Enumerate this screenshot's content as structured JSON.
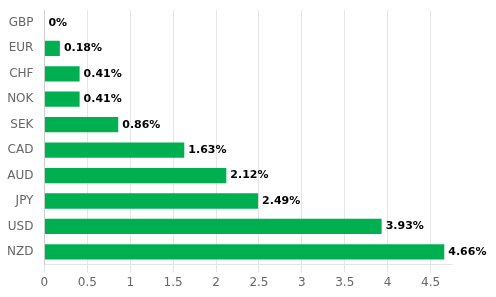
{
  "chart_data": {
    "type": "bar",
    "orientation": "horizontal",
    "categories": [
      "GBP",
      "EUR",
      "CHF",
      "NOK",
      "SEK",
      "CAD",
      "AUD",
      "JPY",
      "USD",
      "NZD"
    ],
    "values": [
      0.0,
      0.18,
      0.41,
      0.41,
      0.86,
      1.63,
      2.12,
      2.49,
      3.93,
      4.66
    ],
    "value_labels": [
      "0%",
      "0.18%",
      "0.41%",
      "0.41%",
      "0.86%",
      "1.63%",
      "2.12%",
      "2.49%",
      "3.93%",
      "4.66%"
    ],
    "data_labels": true,
    "color": "#00b050",
    "xlim": [
      0,
      4.75
    ],
    "xticks": [
      0,
      0.5,
      1,
      1.5,
      2,
      2.5,
      3,
      3.5,
      4,
      4.5
    ],
    "grid": "x"
  }
}
